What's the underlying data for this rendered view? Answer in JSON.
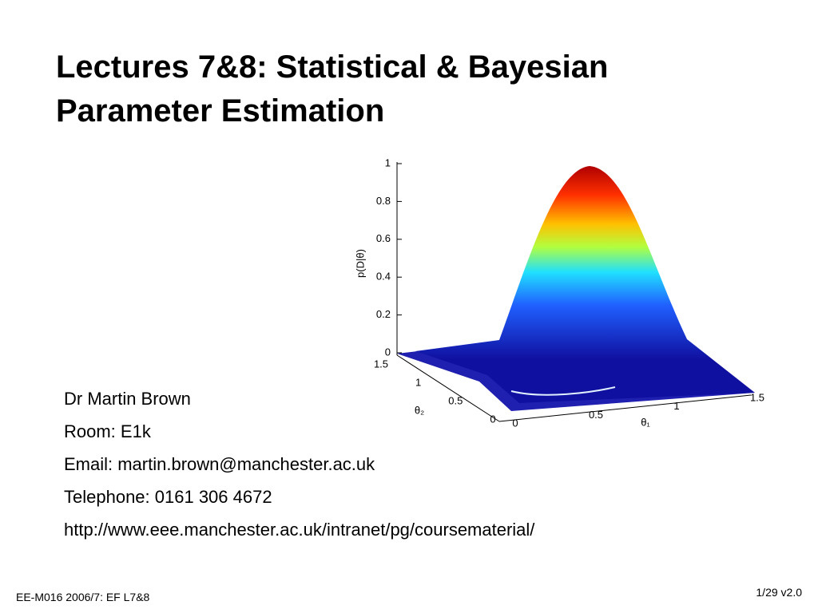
{
  "header": {
    "title_lines": [
      "Lectures 7&8: Statistical & Bayesian",
      "Parameter Estimation"
    ]
  },
  "figure": {
    "zlabel": "p(D|θ)",
    "zticks": [
      0,
      0.2,
      0.4,
      0.6,
      0.8,
      1
    ],
    "x1label": "θ₁",
    "x1ticks": [
      0,
      0.5,
      1,
      1.5
    ],
    "x2label": "θ₂",
    "x2ticks": [
      0,
      0.5,
      1,
      1.5
    ]
  },
  "contact": [
    "Dr Martin Brown",
    "Room: E1k",
    "Email: martin.brown@manchester.ac.uk",
    "Telephone: 0161 306 4672",
    "http://www.eee.manchester.ac.uk/intranet/pg/coursematerial/"
  ],
  "footer": {
    "left": "EE-M016 2006/7: EF L7&8",
    "right": "1/29 v2.0"
  }
}
